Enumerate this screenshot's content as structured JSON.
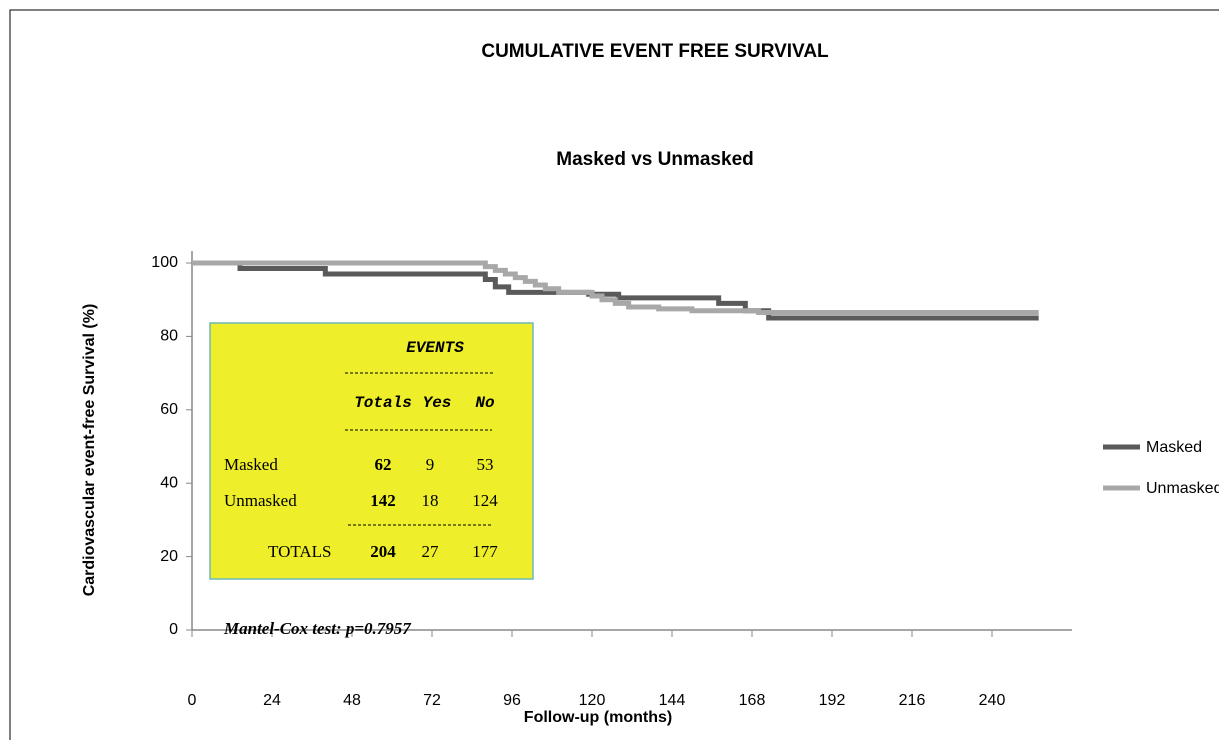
{
  "chart_data": {
    "type": "step",
    "title": "CUMULATIVE EVENT FREE SURVIVAL",
    "subtitle": "Masked vs Unmasked",
    "x_label": "Follow-up (months)",
    "y_label": "Cardiovascular   event-free Survival (%)",
    "xlim": [
      0,
      264
    ],
    "xticks": [
      0,
      24,
      48,
      72,
      96,
      120,
      144,
      168,
      192,
      216,
      240
    ],
    "ylim": [
      0,
      100
    ],
    "yticks": [
      0,
      20,
      40,
      60,
      80,
      100
    ],
    "legend": "right",
    "series": [
      {
        "name": "Masked",
        "color": "#5a5a5a",
        "x": [
          0,
          14.4,
          14.4,
          40,
          40,
          88,
          88,
          91,
          91,
          95,
          95,
          119,
          119,
          128,
          128,
          158,
          158,
          166,
          166,
          173,
          173,
          254
        ],
        "values": [
          100,
          100,
          98.5,
          98.5,
          97,
          97,
          95.5,
          95.5,
          93.5,
          93.5,
          92,
          92,
          91.5,
          91.5,
          90.5,
          90.5,
          89,
          89,
          87,
          87,
          85,
          85
        ]
      },
      {
        "name": "Unmasked",
        "color": "#a8a8a8",
        "x": [
          0,
          88,
          88,
          91,
          91,
          94,
          94,
          97,
          97,
          100,
          100,
          103,
          103,
          106,
          106,
          110,
          110,
          120,
          120,
          123,
          123,
          127,
          127,
          131,
          131,
          140,
          140,
          150,
          150,
          170,
          170,
          254
        ],
        "values": [
          100,
          100,
          99,
          99,
          98,
          98,
          97,
          97,
          96,
          96,
          95,
          95,
          94,
          94,
          93,
          93,
          92,
          92,
          91,
          91,
          90,
          90,
          89,
          89,
          88,
          88,
          87.5,
          87.5,
          87,
          87,
          86.5,
          86.5
        ]
      }
    ],
    "inset": {
      "title": "EVENTS",
      "header": [
        "Totals",
        "Yes",
        "No"
      ],
      "rows": [
        [
          "Masked",
          62,
          9,
          53
        ],
        [
          "Unmasked",
          142,
          18,
          124
        ],
        [
          "TOTALS",
          204,
          27,
          177
        ]
      ],
      "test": "Mantel-Cox test: p=0.7957"
    }
  }
}
